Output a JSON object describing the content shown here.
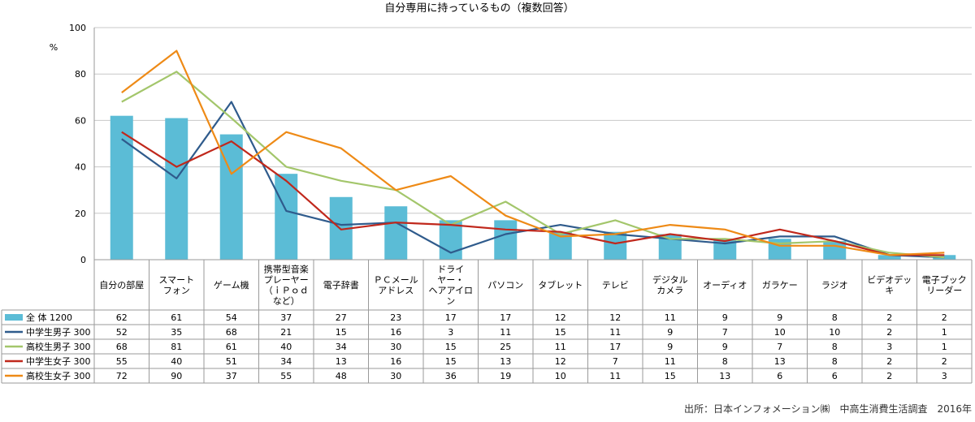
{
  "chart_data": {
    "type": "bar",
    "title": "自分専用に持っているもの（複数回答）",
    "unit_label": "%",
    "ylim": [
      0,
      100
    ],
    "yticks": [
      "0",
      "20",
      "40",
      "60",
      "80",
      "100"
    ],
    "grid": true,
    "categories": [
      [
        "自分の部屋"
      ],
      [
        "スマート",
        "フォン"
      ],
      [
        "ゲーム機"
      ],
      [
        "携帯型音楽",
        "プレーヤー",
        "（ｉＰｏｄ",
        "など）"
      ],
      [
        "電子辞書"
      ],
      [
        "ＰＣメール",
        "アドレス"
      ],
      [
        "ドライ",
        "ヤー・",
        "ヘアアイロ",
        "ン"
      ],
      [
        "パソコン"
      ],
      [
        "タブレット"
      ],
      [
        "テレビ"
      ],
      [
        "デジタル",
        "カメラ"
      ],
      [
        "オーディオ"
      ],
      [
        "ガラケー"
      ],
      [
        "ラジオ"
      ],
      [
        "ビデオデッ",
        "キ"
      ],
      [
        "電子ブック",
        "リーダー"
      ]
    ],
    "series": [
      {
        "name": "全 体 1200",
        "type": "bar",
        "color": "#5bbcd6",
        "values": [
          62,
          61,
          54,
          37,
          27,
          23,
          17,
          17,
          12,
          12,
          11,
          9,
          9,
          8,
          2,
          2
        ]
      },
      {
        "name": "中学生男子 300",
        "type": "line",
        "color": "#2f5b8c",
        "values": [
          52,
          35,
          68,
          21,
          15,
          16,
          3,
          11,
          15,
          11,
          9,
          7,
          10,
          10,
          2,
          1
        ]
      },
      {
        "name": "高校生男子 300",
        "type": "line",
        "color": "#a3c66b",
        "values": [
          68,
          81,
          61,
          40,
          34,
          30,
          15,
          25,
          11,
          17,
          9,
          9,
          7,
          8,
          3,
          1
        ]
      },
      {
        "name": "中学生女子 300",
        "type": "line",
        "color": "#c0281c",
        "values": [
          55,
          40,
          51,
          34,
          13,
          16,
          15,
          13,
          12,
          7,
          11,
          8,
          13,
          8,
          2,
          2
        ]
      },
      {
        "name": "高校生女子 300",
        "type": "line",
        "color": "#ee8a16",
        "values": [
          72,
          90,
          37,
          55,
          48,
          30,
          36,
          19,
          10,
          11,
          15,
          13,
          6,
          6,
          2,
          3
        ]
      }
    ]
  },
  "source": "出所：日本インフォメーション㈱　中高生消費生活調査　2016年"
}
